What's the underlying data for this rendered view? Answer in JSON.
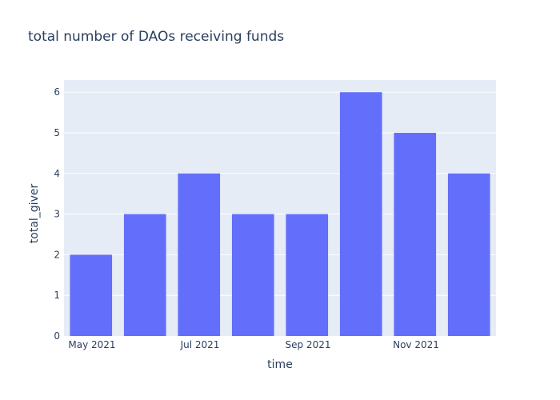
{
  "chart_data": {
    "type": "bar",
    "title": "total number of DAOs receiving funds",
    "xlabel": "time",
    "ylabel": "total_giver",
    "categories": [
      "2021-05",
      "2021-06",
      "2021-07",
      "2021-08",
      "2021-09",
      "2021-10",
      "2021-11",
      "2021-12"
    ],
    "values": [
      2,
      3,
      4,
      3,
      3,
      6,
      5,
      4
    ],
    "x_tick_labels": [
      "May 2021",
      "Jul 2021",
      "Sep 2021",
      "Nov 2021"
    ],
    "y_ticks": [
      0,
      1,
      2,
      3,
      4,
      5,
      6
    ],
    "ylim": [
      0,
      6.3
    ],
    "grid": true,
    "legend": "none",
    "colors": {
      "bar": "#636efa",
      "plot_background": "#e5ecf6",
      "gridline": "#ffffff",
      "text": "#2a3f5f"
    }
  }
}
